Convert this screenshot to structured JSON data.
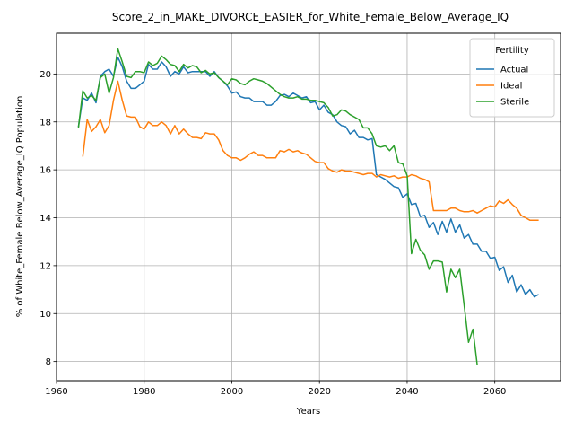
{
  "chart_data": {
    "type": "line",
    "title": "Score_2_in_MAKE_DIVORCE_EASIER_for_White_Female_Below_Average_IQ",
    "xlabel": "Years",
    "ylabel": "% of White_Female Below_Average_IQ Population",
    "xlim": [
      1960,
      2075
    ],
    "ylim": [
      7.2,
      21.7
    ],
    "xticks": [
      1960,
      1980,
      2000,
      2020,
      2040,
      2060
    ],
    "yticks": [
      8,
      10,
      12,
      14,
      16,
      18,
      20
    ],
    "grid": true,
    "legend": {
      "title": "Fertility",
      "placement": "top-right"
    },
    "series": [
      {
        "name": "Actual",
        "color": "#1f77b4",
        "x": [
          1965,
          1966,
          1967,
          1968,
          1969,
          1970,
          1971,
          1972,
          1973,
          1974,
          1975,
          1976,
          1977,
          1978,
          1979,
          1980,
          1981,
          1982,
          1983,
          1984,
          1985,
          1986,
          1987,
          1988,
          1989,
          1990,
          1991,
          1992,
          1993,
          1994,
          1995,
          1996,
          1997,
          1998,
          1999,
          2000,
          2001,
          2002,
          2003,
          2004,
          2005,
          2006,
          2007,
          2008,
          2009,
          2010,
          2011,
          2012,
          2013,
          2014,
          2015,
          2016,
          2017,
          2018,
          2019,
          2020,
          2021,
          2022,
          2023,
          2024,
          2025,
          2026,
          2027,
          2028,
          2029,
          2030,
          2031,
          2032,
          2033,
          2034,
          2035,
          2036,
          2037,
          2038,
          2039,
          2040,
          2041,
          2042,
          2043,
          2044,
          2045,
          2046,
          2047,
          2048,
          2049,
          2050,
          2051,
          2052,
          2053,
          2054,
          2055,
          2056,
          2057,
          2058,
          2059,
          2060,
          2061,
          2062,
          2063,
          2064,
          2065,
          2066,
          2067,
          2068,
          2069,
          2070
        ],
        "values": [
          17.8,
          19.0,
          18.9,
          19.2,
          18.8,
          19.9,
          20.1,
          20.2,
          19.9,
          20.7,
          20.3,
          19.7,
          19.4,
          19.4,
          19.55,
          19.7,
          20.4,
          20.2,
          20.2,
          20.5,
          20.3,
          19.9,
          20.1,
          20.0,
          20.3,
          20.05,
          20.1,
          20.1,
          20.1,
          20.1,
          19.9,
          20.1,
          19.85,
          19.7,
          19.5,
          19.2,
          19.25,
          19.05,
          19.0,
          19.0,
          18.85,
          18.85,
          18.85,
          18.7,
          18.7,
          18.85,
          19.1,
          19.15,
          19.05,
          19.2,
          19.1,
          19.0,
          19.05,
          18.8,
          18.85,
          18.5,
          18.7,
          18.4,
          18.3,
          18.0,
          17.85,
          17.8,
          17.5,
          17.65,
          17.35,
          17.35,
          17.25,
          17.3,
          15.8,
          15.7,
          15.6,
          15.45,
          15.3,
          15.25,
          14.85,
          15.0,
          14.55,
          14.6,
          14.05,
          14.1,
          13.6,
          13.8,
          13.3,
          13.85,
          13.4,
          13.95,
          13.4,
          13.7,
          13.15,
          13.3,
          12.9,
          12.9,
          12.6,
          12.6,
          12.3,
          12.35,
          11.8,
          11.95,
          11.3,
          11.6,
          10.9,
          11.2,
          10.8,
          11.0,
          10.7,
          10.8
        ]
      },
      {
        "name": "Ideal",
        "color": "#ff7f0e",
        "x": [
          1966,
          1967,
          1968,
          1969,
          1970,
          1971,
          1972,
          1973,
          1974,
          1975,
          1976,
          1977,
          1978,
          1979,
          1980,
          1981,
          1982,
          1983,
          1984,
          1985,
          1986,
          1987,
          1988,
          1989,
          1990,
          1991,
          1992,
          1993,
          1994,
          1995,
          1996,
          1997,
          1998,
          1999,
          2000,
          2001,
          2002,
          2003,
          2004,
          2005,
          2006,
          2007,
          2008,
          2009,
          2010,
          2011,
          2012,
          2013,
          2014,
          2015,
          2016,
          2017,
          2018,
          2019,
          2020,
          2021,
          2022,
          2023,
          2024,
          2025,
          2026,
          2027,
          2028,
          2029,
          2030,
          2031,
          2032,
          2033,
          2034,
          2035,
          2036,
          2037,
          2038,
          2039,
          2040,
          2041,
          2042,
          2043,
          2044,
          2045,
          2046,
          2047,
          2048,
          2049,
          2050,
          2051,
          2052,
          2053,
          2054,
          2055,
          2056,
          2057,
          2058,
          2059,
          2060,
          2061,
          2062,
          2063,
          2064,
          2065,
          2066,
          2067,
          2068,
          2069,
          2070
        ],
        "values": [
          16.55,
          18.1,
          17.6,
          17.8,
          18.1,
          17.55,
          17.85,
          18.9,
          19.7,
          18.9,
          18.25,
          18.2,
          18.2,
          17.8,
          17.7,
          18.0,
          17.85,
          17.85,
          18.0,
          17.85,
          17.5,
          17.85,
          17.5,
          17.7,
          17.5,
          17.35,
          17.35,
          17.3,
          17.55,
          17.5,
          17.5,
          17.25,
          16.8,
          16.6,
          16.5,
          16.5,
          16.4,
          16.5,
          16.65,
          16.75,
          16.6,
          16.6,
          16.5,
          16.5,
          16.5,
          16.8,
          16.75,
          16.85,
          16.75,
          16.8,
          16.7,
          16.65,
          16.5,
          16.35,
          16.3,
          16.3,
          16.05,
          15.95,
          15.9,
          16.0,
          15.95,
          15.95,
          15.9,
          15.85,
          15.8,
          15.85,
          15.85,
          15.7,
          15.8,
          15.75,
          15.7,
          15.75,
          15.65,
          15.7,
          15.7,
          15.8,
          15.75,
          15.65,
          15.6,
          15.5,
          14.3,
          14.3,
          14.3,
          14.3,
          14.4,
          14.4,
          14.3,
          14.25,
          14.25,
          14.3,
          14.2,
          14.3,
          14.4,
          14.5,
          14.45,
          14.7,
          14.6,
          14.75,
          14.55,
          14.4,
          14.1,
          14.0,
          13.9,
          13.9,
          13.9
        ]
      },
      {
        "name": "Sterile",
        "color": "#2ca02c",
        "x": [
          1965,
          1966,
          1967,
          1968,
          1969,
          1970,
          1971,
          1972,
          1973,
          1974,
          1975,
          1976,
          1977,
          1978,
          1979,
          1980,
          1981,
          1982,
          1983,
          1984,
          1985,
          1986,
          1987,
          1988,
          1989,
          1990,
          1991,
          1992,
          1993,
          1994,
          1995,
          1996,
          1997,
          1998,
          1999,
          2000,
          2001,
          2002,
          2003,
          2004,
          2005,
          2006,
          2007,
          2008,
          2009,
          2010,
          2011,
          2012,
          2013,
          2014,
          2015,
          2016,
          2017,
          2018,
          2019,
          2020,
          2021,
          2022,
          2023,
          2024,
          2025,
          2026,
          2027,
          2028,
          2029,
          2030,
          2031,
          2032,
          2033,
          2034,
          2035,
          2036,
          2037,
          2038,
          2039,
          2040,
          2041,
          2042,
          2043,
          2044,
          2045,
          2046,
          2047,
          2048,
          2049,
          2050,
          2051,
          2052,
          2053,
          2054,
          2055,
          2056
        ],
        "values": [
          17.75,
          19.3,
          19.0,
          19.1,
          18.9,
          19.85,
          20.0,
          19.2,
          19.85,
          21.05,
          20.5,
          19.9,
          19.85,
          20.1,
          20.1,
          20.05,
          20.5,
          20.35,
          20.45,
          20.75,
          20.6,
          20.4,
          20.35,
          20.1,
          20.4,
          20.25,
          20.35,
          20.3,
          20.05,
          20.15,
          20.0,
          20.05,
          19.85,
          19.7,
          19.55,
          19.8,
          19.75,
          19.6,
          19.55,
          19.7,
          19.8,
          19.75,
          19.7,
          19.6,
          19.45,
          19.3,
          19.15,
          19.05,
          19.0,
          19.0,
          19.05,
          18.95,
          18.95,
          18.9,
          18.9,
          18.85,
          18.8,
          18.6,
          18.25,
          18.3,
          18.5,
          18.45,
          18.3,
          18.2,
          18.1,
          17.75,
          17.75,
          17.5,
          17.0,
          16.95,
          17.0,
          16.8,
          17.0,
          16.3,
          16.25,
          15.75,
          12.5,
          13.1,
          12.65,
          12.45,
          11.85,
          12.2,
          12.2,
          12.15,
          10.9,
          11.85,
          11.5,
          11.85,
          10.35,
          8.8,
          9.35,
          7.85
        ]
      }
    ]
  }
}
